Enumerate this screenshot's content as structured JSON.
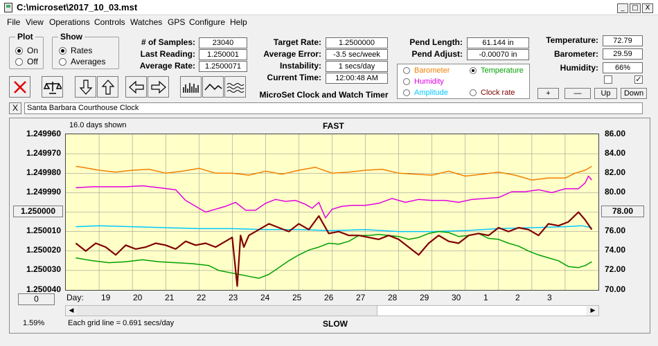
{
  "window": {
    "title": "C:\\microset\\2017_10_03.mst",
    "minimize": "_",
    "maximize": "□",
    "close": "X"
  },
  "menu": [
    "File",
    "View",
    "Operations",
    "Controls",
    "Watches",
    "GPS",
    "Configure",
    "Help"
  ],
  "plot_group": {
    "legend": "Plot",
    "options": [
      "On",
      "Off"
    ],
    "selected": "On"
  },
  "show_group": {
    "legend": "Show",
    "options": [
      "Rates",
      "Averages"
    ],
    "selected": "Rates"
  },
  "stats": {
    "num_samples_label": "# of Samples:",
    "num_samples": "23040",
    "last_reading_label": "Last Reading:",
    "last_reading": "1.250001",
    "average_rate_label": "Average Rate:",
    "average_rate": "1.2500071",
    "target_rate_label": "Target Rate:",
    "target_rate": "1.2500000",
    "average_error_label": "Average Error:",
    "average_error": "-3.5 sec/week",
    "instability_label": "Instability:",
    "instability": "1 secs/day",
    "current_time_label": "Current Time:",
    "current_time": "12:00:48 AM",
    "pend_length_label": "Pend Length:",
    "pend_length": "61.144 in",
    "pend_adjust_label": "Pend Adjust:",
    "pend_adjust": "-0.00070 in",
    "temperature_label": "Temperature:",
    "temperature": "72.79",
    "barometer_label": "Barometer:",
    "barometer": "29.59",
    "humidity_label": "Humidity:",
    "humidity": "66%"
  },
  "app_name": "MicroSet Clock and Watch Timer",
  "toolbar": {
    "icons": [
      "clear-icon",
      "balance-scale-icon",
      "arrow-down-icon",
      "arrow-up-icon",
      "arrow-left-icon",
      "arrow-right-icon",
      "bar-graph-icon",
      "line-graph-icon",
      "wave-graph-icon"
    ]
  },
  "secondary_plots": [
    {
      "name": "Barometer",
      "color": "#f08000",
      "selected": false
    },
    {
      "name": "Temperature",
      "color": "#00a000",
      "selected": true
    },
    {
      "name": "Humidity",
      "color": "#e000e0",
      "selected": false
    },
    {
      "name": "Amplitude",
      "color": "#00c8ff",
      "selected": false
    },
    {
      "name": "Clock rate",
      "color": "#800000",
      "selected": false
    }
  ],
  "right_buttons": {
    "plus": "+",
    "minus": "—",
    "up": "Up",
    "down": "Down"
  },
  "checkboxes": [
    {
      "checked": false
    },
    {
      "checked": true
    }
  ],
  "clock_name": "Santa Barbara Courthouse Clock",
  "clear_name_button": "X",
  "chart_header": {
    "days_shown": "16.0 days shown",
    "top_label": "FAST",
    "bottom_label": "SLOW"
  },
  "chart_footer": {
    "grid_note": "Each grid line = 0.691 secs/day",
    "percent": "1.59%",
    "day_label": "Day:"
  },
  "center_value_button": "1.250000",
  "offset_button": "0",
  "right_center_button": "78.00",
  "chart_data": {
    "type": "line",
    "x_labels": [
      "19",
      "20",
      "21",
      "22",
      "23",
      "24",
      "25",
      "26",
      "27",
      "28",
      "29",
      "30",
      "1",
      "2",
      "3"
    ],
    "x": [
      18.0,
      34.0
    ],
    "y_left_ticks": [
      "1.249960",
      "1.249970",
      "1.249980",
      "1.249990",
      "1.250000",
      "1.250010",
      "1.250020",
      "1.250030",
      "1.250040"
    ],
    "y_right_ticks": [
      "86.00",
      "84.00",
      "82.00",
      "80.00",
      "78.00",
      "76.00",
      "74.00",
      "72.00",
      "70.00"
    ],
    "ylim_left": [
      1.25004,
      1.24996
    ],
    "ylim_right": [
      70,
      86
    ],
    "grid": true,
    "series": [
      {
        "name": "Barometer",
        "color": "#f08000",
        "x": [
          18.3,
          18.5,
          19,
          19.5,
          20,
          20.5,
          21,
          21.5,
          22,
          22.5,
          23,
          23.5,
          24,
          24.5,
          25,
          25.5,
          26,
          26.5,
          27,
          27.5,
          28,
          28.5,
          29,
          29.5,
          30,
          30.5,
          31,
          31.5,
          32,
          32.5,
          33,
          33.3,
          33.6,
          33.8
        ],
        "y": [
          82.7,
          82.6,
          82.3,
          82.1,
          82.3,
          82.4,
          82.0,
          82.2,
          82.5,
          82.0,
          82.0,
          81.8,
          82.2,
          81.9,
          82.3,
          82.6,
          82.0,
          82.1,
          82.3,
          82.4,
          82.0,
          81.9,
          81.8,
          82.2,
          81.7,
          81.9,
          82.1,
          81.8,
          81.3,
          81.5,
          81.5,
          82.0,
          82.3,
          82.7
        ]
      },
      {
        "name": "Humidity",
        "color": "#e000e0",
        "x": [
          18.3,
          18.8,
          19.3,
          19.8,
          20.3,
          20.8,
          21.3,
          21.6,
          21.9,
          22.2,
          22.5,
          22.8,
          23.1,
          23.4,
          23.7,
          24,
          24.3,
          24.6,
          24.9,
          25.2,
          25.4,
          25.6,
          25.8,
          26,
          26.3,
          26.6,
          27,
          27.4,
          27.8,
          28.2,
          28.6,
          29,
          29.4,
          29.8,
          30.2,
          30.6,
          31,
          31.4,
          31.8,
          32.2,
          32.6,
          33,
          33.2,
          33.4,
          33.6,
          33.7,
          33.8
        ],
        "y": [
          80.5,
          80.6,
          80.6,
          80.6,
          80.7,
          80.5,
          80.3,
          79.2,
          78.6,
          78.0,
          78.3,
          78.6,
          79.0,
          78.2,
          78.2,
          78.9,
          79.3,
          79.1,
          79.2,
          78.8,
          78.4,
          79.0,
          77.4,
          78.3,
          78.6,
          78.7,
          78.7,
          78.9,
          79.4,
          79.0,
          79.3,
          79.2,
          79.2,
          79.0,
          79.3,
          79.4,
          79.5,
          80.1,
          80.1,
          80.3,
          80.0,
          80.4,
          80.4,
          80.4,
          81.0,
          81.7,
          81.3
        ]
      },
      {
        "name": "Amplitude",
        "color": "#00c8ff",
        "x": [
          18.3,
          19,
          20,
          21,
          22,
          23,
          24,
          25,
          26,
          27,
          28,
          29,
          30,
          31,
          32,
          33,
          33.5,
          33.8
        ],
        "y": [
          76.5,
          76.6,
          76.5,
          76.4,
          76.3,
          76.3,
          76.2,
          76.2,
          76.1,
          76.2,
          76.0,
          76.0,
          76.1,
          76.3,
          76.4,
          76.5,
          76.6,
          76.4
        ]
      },
      {
        "name": "Temperature",
        "color": "#00a000",
        "x": [
          18.3,
          18.8,
          19.3,
          19.8,
          20.3,
          20.8,
          21.3,
          21.8,
          22.3,
          22.6,
          22.9,
          23.2,
          23.5,
          23.8,
          24.1,
          24.4,
          24.7,
          25,
          25.3,
          25.6,
          25.9,
          26.2,
          26.5,
          26.8,
          27.1,
          27.4,
          27.7,
          28,
          28.3,
          28.6,
          28.9,
          29.2,
          29.5,
          29.8,
          30.1,
          30.4,
          30.7,
          31,
          31.3,
          31.6,
          31.9,
          32.2,
          32.5,
          32.8,
          33.1,
          33.4,
          33.6,
          33.8
        ],
        "y": [
          73.3,
          73.0,
          72.8,
          72.9,
          73.1,
          72.9,
          72.8,
          72.7,
          72.5,
          72.0,
          71.8,
          71.6,
          71.4,
          71.2,
          71.6,
          72.3,
          73.0,
          73.6,
          74.1,
          74.4,
          74.8,
          74.7,
          75.0,
          75.6,
          75.6,
          75.7,
          75.6,
          75.5,
          75.2,
          75.4,
          75.8,
          76.0,
          75.9,
          75.5,
          75.6,
          75.8,
          75.3,
          75.2,
          74.8,
          74.5,
          74.0,
          73.6,
          73.3,
          73.0,
          72.4,
          72.3,
          72.5,
          72.9
        ]
      },
      {
        "name": "Clock rate",
        "color": "#800000",
        "x": [
          18.3,
          18.6,
          18.9,
          19.2,
          19.5,
          19.8,
          20.1,
          20.4,
          20.7,
          21,
          21.3,
          21.6,
          21.9,
          22.2,
          22.5,
          22.8,
          23.0,
          23.15,
          23.25,
          23.35,
          23.5,
          23.8,
          24.1,
          24.4,
          24.7,
          25,
          25.3,
          25.6,
          25.9,
          26.2,
          26.5,
          26.8,
          27.1,
          27.4,
          27.7,
          28,
          28.3,
          28.6,
          28.9,
          29.2,
          29.5,
          29.8,
          30.1,
          30.4,
          30.7,
          31,
          31.3,
          31.6,
          31.9,
          32.2,
          32.5,
          32.8,
          33.1,
          33.4,
          33.6,
          33.8
        ],
        "y": [
          1.250016,
          1.25002,
          1.250016,
          1.250018,
          1.250022,
          1.250017,
          1.250019,
          1.250018,
          1.250016,
          1.250017,
          1.250019,
          1.250015,
          1.250017,
          1.250016,
          1.250018,
          1.250015,
          1.250013,
          1.250038,
          1.250012,
          1.250018,
          1.250012,
          1.250009,
          1.250006,
          1.250008,
          1.25001,
          1.250006,
          1.250009,
          1.250002,
          1.250011,
          1.25001,
          1.250012,
          1.250012,
          1.250013,
          1.250014,
          1.250012,
          1.250014,
          1.250018,
          1.250022,
          1.250016,
          1.250012,
          1.250015,
          1.250016,
          1.250012,
          1.250011,
          1.250012,
          1.250008,
          1.25001,
          1.250008,
          1.250009,
          1.250012,
          1.250006,
          1.250007,
          1.250005,
          1.25,
          1.250004,
          1.250009
        ]
      }
    ]
  }
}
